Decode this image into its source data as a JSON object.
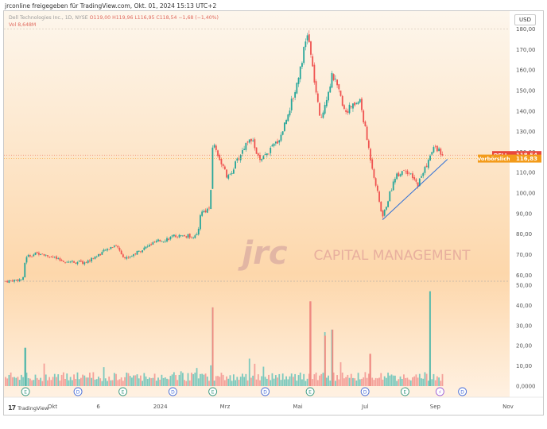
{
  "credit": "jrconline freigegeben für TradingView.com, Okt. 01, 2024 15:13 UTC+2",
  "legend": {
    "symbol": "Dell Technologies Inc., 1D, NYSE",
    "ohlc": "O119,00 H119,96 L116,95 C118,54 −1,68 (−1,40%)",
    "change": "−1,68 (−1,40%)",
    "volume": "Vol 8,648M"
  },
  "currency_button": "USD",
  "watermark": {
    "logo_text": "jrc",
    "company": "CAPITAL MANAGEMENT"
  },
  "tradingview": {
    "mark": "17",
    "text": "TradingView"
  },
  "price_tags": [
    {
      "label": "DELL",
      "value": "118,54",
      "color": "#e8483c"
    },
    {
      "label": "Vorbörslich",
      "value": "116,83",
      "color": "#f39b1a"
    }
  ],
  "chart_data": {
    "type": "candlestick",
    "price_axis": {
      "range": [
        57,
        181
      ],
      "ticks": [
        "180,00",
        "170,00",
        "160,00",
        "150,00",
        "140,00",
        "130,00",
        "120,00",
        "110,00",
        "100,00",
        "90,00",
        "80,00",
        "70,00",
        "60,00"
      ],
      "tick_values": [
        180,
        170,
        160,
        150,
        140,
        130,
        120,
        110,
        100,
        90,
        80,
        70,
        60
      ]
    },
    "volume_axis": {
      "range": [
        0,
        50
      ],
      "ticks": [
        "50,00",
        "40,00",
        "30,00",
        "20,00",
        "10,00",
        "0,0000"
      ],
      "tick_values": [
        50,
        40,
        30,
        20,
        10,
        0
      ],
      "unit": "M"
    },
    "time_axis": {
      "labels": [
        "Okt",
        "6",
        "2024",
        "Mrz",
        "Mai",
        "Jul",
        "Sep",
        "Nov"
      ]
    },
    "time_label_positions": [
      0.09,
      0.175,
      0.29,
      0.41,
      0.545,
      0.67,
      0.8,
      0.935
    ],
    "current_price": 118.54,
    "premarket_price": 116.83,
    "key_points": [
      {
        "t": 0.0,
        "price": 57
      },
      {
        "t": 0.035,
        "price": 58
      },
      {
        "t": 0.04,
        "price": 69
      },
      {
        "t": 0.07,
        "price": 71
      },
      {
        "t": 0.11,
        "price": 67
      },
      {
        "t": 0.16,
        "price": 66
      },
      {
        "t": 0.22,
        "price": 75
      },
      {
        "t": 0.24,
        "price": 68
      },
      {
        "t": 0.3,
        "price": 76
      },
      {
        "t": 0.34,
        "price": 79
      },
      {
        "t": 0.385,
        "price": 79
      },
      {
        "t": 0.39,
        "price": 90
      },
      {
        "t": 0.41,
        "price": 93
      },
      {
        "t": 0.415,
        "price": 125
      },
      {
        "t": 0.445,
        "price": 107
      },
      {
        "t": 0.49,
        "price": 128
      },
      {
        "t": 0.51,
        "price": 115
      },
      {
        "t": 0.55,
        "price": 127
      },
      {
        "t": 0.58,
        "price": 150
      },
      {
        "t": 0.605,
        "price": 178
      },
      {
        "t": 0.63,
        "price": 135
      },
      {
        "t": 0.655,
        "price": 158
      },
      {
        "t": 0.68,
        "price": 140
      },
      {
        "t": 0.71,
        "price": 145
      },
      {
        "t": 0.73,
        "price": 118
      },
      {
        "t": 0.755,
        "price": 88
      },
      {
        "t": 0.78,
        "price": 108
      },
      {
        "t": 0.8,
        "price": 112
      },
      {
        "t": 0.825,
        "price": 104
      },
      {
        "t": 0.86,
        "price": 123
      },
      {
        "t": 0.875,
        "price": 118.54
      }
    ],
    "volume_spikes": [
      {
        "t": 0.04,
        "v": 19
      },
      {
        "t": 0.415,
        "v": 39
      },
      {
        "t": 0.61,
        "v": 42
      },
      {
        "t": 0.64,
        "v": 25
      },
      {
        "t": 0.655,
        "v": 28
      },
      {
        "t": 0.73,
        "v": 16
      },
      {
        "t": 0.85,
        "v": 47
      }
    ],
    "trendline": {
      "from": {
        "t": 0.755,
        "price": 87
      },
      "to": {
        "t": 0.885,
        "price": 116.5
      }
    },
    "earnings_markers": [
      {
        "t": 0.04,
        "label": "E",
        "type": "earnings"
      },
      {
        "t": 0.145,
        "label": "D",
        "type": "dividend"
      },
      {
        "t": 0.235,
        "label": "E",
        "type": "earnings"
      },
      {
        "t": 0.335,
        "label": "D",
        "type": "dividend"
      },
      {
        "t": 0.415,
        "label": "E",
        "type": "earnings"
      },
      {
        "t": 0.52,
        "label": "D",
        "type": "dividend"
      },
      {
        "t": 0.61,
        "label": "E",
        "type": "earnings"
      },
      {
        "t": 0.72,
        "label": "D",
        "type": "dividend"
      },
      {
        "t": 0.8,
        "label": "E",
        "type": "earnings"
      },
      {
        "t": 0.87,
        "label": "⚡",
        "type": "split"
      },
      {
        "t": 0.915,
        "label": "D",
        "type": "dividend"
      }
    ],
    "up_color": "#26a69a",
    "down_color": "#ef5350",
    "grid": false
  }
}
